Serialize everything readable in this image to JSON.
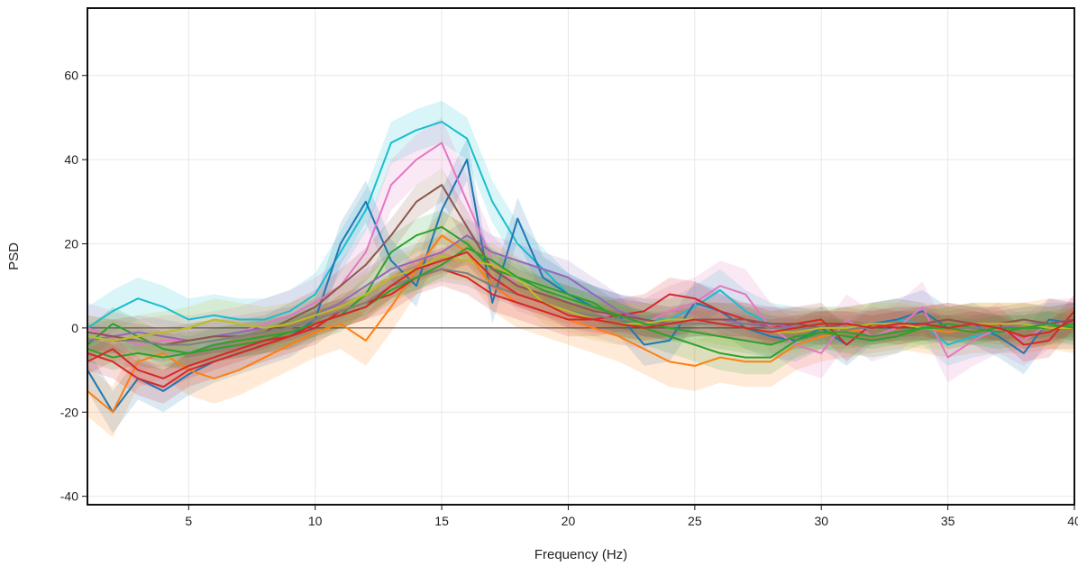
{
  "chart_data": {
    "type": "line",
    "title": "",
    "xlabel": "Frequency (Hz)",
    "ylabel": "PSD",
    "xlim": [
      1,
      40
    ],
    "ylim": [
      -42,
      76
    ],
    "xticks": [
      5,
      10,
      15,
      20,
      25,
      30,
      35,
      40
    ],
    "yticks": [
      -40,
      -20,
      0,
      20,
      40,
      60
    ],
    "grid": true,
    "legend": "none",
    "baseline": 0,
    "x": [
      1,
      2,
      3,
      4,
      5,
      6,
      7,
      8,
      9,
      10,
      11,
      12,
      13,
      14,
      15,
      16,
      17,
      18,
      19,
      20,
      21,
      22,
      23,
      24,
      25,
      26,
      27,
      28,
      29,
      30,
      31,
      32,
      33,
      34,
      35,
      36,
      37,
      38,
      39,
      40
    ],
    "series": [
      {
        "color": "#17becf",
        "band": 5,
        "values": [
          0,
          4,
          7,
          5,
          2,
          3,
          2,
          2,
          4,
          8,
          18,
          28,
          44,
          47,
          49,
          45,
          30,
          20,
          14,
          8,
          5,
          3,
          2,
          2,
          5,
          9,
          4,
          1,
          0,
          0,
          0,
          1,
          2,
          1,
          -4,
          -2,
          -1,
          0,
          1,
          1
        ]
      },
      {
        "color": "#1f77b4",
        "band": 5,
        "values": [
          -10,
          -20,
          -12,
          -15,
          -11,
          -8,
          -6,
          -4,
          -2,
          2,
          20,
          30,
          16,
          10,
          28,
          40,
          6,
          26,
          12,
          8,
          5,
          3,
          -4,
          -3,
          6,
          4,
          0,
          -2,
          -3,
          0,
          -4,
          1,
          2,
          4,
          0,
          1,
          -2,
          -6,
          2,
          1
        ]
      },
      {
        "color": "#ff7f0e",
        "band": 6,
        "values": [
          -15,
          -20,
          -8,
          -6,
          -10,
          -12,
          -10,
          -7,
          -4,
          -1,
          1,
          -3,
          5,
          14,
          22,
          18,
          10,
          6,
          4,
          2,
          0,
          -2,
          -5,
          -8,
          -9,
          -7,
          -8,
          -8,
          -4,
          -2,
          -1,
          0,
          1,
          0,
          -1,
          0,
          0,
          0,
          1,
          0
        ]
      },
      {
        "color": "#e377c2",
        "band": 6,
        "values": [
          0,
          -2,
          -4,
          -3,
          -3,
          -2,
          -1,
          1,
          3,
          6,
          10,
          18,
          34,
          40,
          44,
          30,
          16,
          10,
          8,
          6,
          4,
          2,
          1,
          4,
          6,
          10,
          8,
          0,
          -4,
          -6,
          2,
          -2,
          0,
          5,
          -7,
          -3,
          0,
          -3,
          1,
          1
        ]
      },
      {
        "color": "#d62728",
        "band": 4,
        "values": [
          -6,
          -8,
          -12,
          -14,
          -10,
          -8,
          -6,
          -4,
          -2,
          0,
          4,
          6,
          8,
          12,
          14,
          12,
          8,
          6,
          4,
          2,
          2,
          3,
          4,
          8,
          7,
          4,
          2,
          0,
          1,
          2,
          -4,
          1,
          0,
          1,
          2,
          1,
          1,
          -4,
          -3,
          4
        ]
      },
      {
        "color": "#2ca02c",
        "band": 4,
        "values": [
          -4,
          1,
          -2,
          -5,
          -6,
          -4,
          -3,
          -2,
          -1,
          1,
          3,
          8,
          18,
          22,
          24,
          20,
          14,
          12,
          10,
          8,
          6,
          2,
          0,
          -2,
          -4,
          -6,
          -7,
          -7,
          -3,
          -1,
          -2,
          -3,
          -2,
          0,
          1,
          0,
          -1,
          0,
          0,
          1
        ]
      },
      {
        "color": "#9467bd",
        "band": 4,
        "values": [
          -3,
          -2,
          -1,
          -2,
          -3,
          -2,
          -1,
          0,
          1,
          3,
          6,
          10,
          14,
          16,
          18,
          22,
          18,
          16,
          14,
          12,
          8,
          4,
          2,
          1,
          2,
          2,
          1,
          1,
          0,
          0,
          0,
          0,
          1,
          1,
          0,
          1,
          0,
          1,
          1,
          2
        ]
      },
      {
        "color": "#8c564b",
        "band": 4,
        "values": [
          -1,
          -2,
          -3,
          -4,
          -3,
          -2,
          -2,
          -1,
          2,
          5,
          10,
          15,
          22,
          30,
          34,
          24,
          14,
          10,
          8,
          6,
          4,
          3,
          2,
          1,
          2,
          2,
          2,
          1,
          1,
          0,
          1,
          0,
          1,
          1,
          2,
          1,
          1,
          2,
          1,
          2
        ]
      },
      {
        "color": "#7f7f7f",
        "band": 3,
        "values": [
          -2,
          -3,
          -3,
          -4,
          -4,
          -3,
          -2,
          -1,
          0,
          2,
          4,
          6,
          10,
          12,
          14,
          13,
          10,
          8,
          6,
          4,
          3,
          2,
          1,
          1,
          1,
          1,
          1,
          0,
          0,
          0,
          0,
          0,
          1,
          0,
          0,
          0,
          0,
          0,
          1,
          0
        ]
      },
      {
        "color": "#bcbd22",
        "band": 5,
        "values": [
          -2,
          -3,
          -2,
          -1,
          0,
          2,
          1,
          0,
          1,
          3,
          5,
          8,
          12,
          14,
          17,
          16,
          15,
          12,
          6,
          4,
          2,
          1,
          1,
          2,
          2,
          1,
          0,
          -1,
          -1,
          0,
          0,
          1,
          1,
          0,
          0,
          1,
          1,
          1,
          0,
          0
        ]
      },
      {
        "color": "#2ca02c",
        "band": 3,
        "values": [
          -5,
          -7,
          -6,
          -7,
          -6,
          -5,
          -4,
          -3,
          -1,
          1,
          3,
          5,
          9,
          12,
          15,
          19,
          16,
          12,
          9,
          7,
          5,
          3,
          1,
          0,
          -1,
          -2,
          -3,
          -4,
          -2,
          -1,
          -1,
          -2,
          -1,
          0,
          0,
          -1,
          0,
          0,
          1,
          0
        ]
      },
      {
        "color": "#d62728",
        "band": 3,
        "values": [
          -8,
          -5,
          -10,
          -12,
          -9,
          -7,
          -5,
          -3,
          -2,
          1,
          3,
          5,
          10,
          14,
          16,
          18,
          12,
          8,
          6,
          3,
          2,
          1,
          0,
          1,
          2,
          1,
          0,
          -1,
          0,
          1,
          1,
          0,
          1,
          1,
          0,
          1,
          0,
          -2,
          -1,
          2
        ]
      }
    ]
  }
}
